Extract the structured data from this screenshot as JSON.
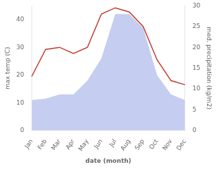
{
  "chart_data": {
    "type": "line",
    "xlabel": "date (month)",
    "ylabel": "max temp (C)",
    "y2label": "med. precipitation (kg/m2)",
    "categories": [
      "Jan",
      "Feb",
      "Mar",
      "Apr",
      "May",
      "Jun",
      "Jul",
      "Aug",
      "Sep",
      "Oct",
      "Nov",
      "Dec"
    ],
    "series": [
      {
        "type": "area",
        "color": "#c5cdf0",
        "values": [
          11,
          11.5,
          13,
          13,
          18,
          26,
          42,
          42,
          37,
          20,
          13,
          11
        ]
      },
      {
        "type": "line",
        "color": "#c0392b",
        "axis": "y2",
        "values": [
          13,
          19.5,
          20,
          18.5,
          20,
          28,
          29.5,
          28.5,
          25,
          17,
          12,
          11
        ]
      }
    ],
    "ylim": [
      0,
      45
    ],
    "yticks": [
      0,
      10,
      20,
      30,
      40
    ],
    "y2lim": [
      0,
      30
    ],
    "y2ticks": [
      0,
      5,
      10,
      15,
      20,
      25,
      30
    ],
    "grid": false
  }
}
